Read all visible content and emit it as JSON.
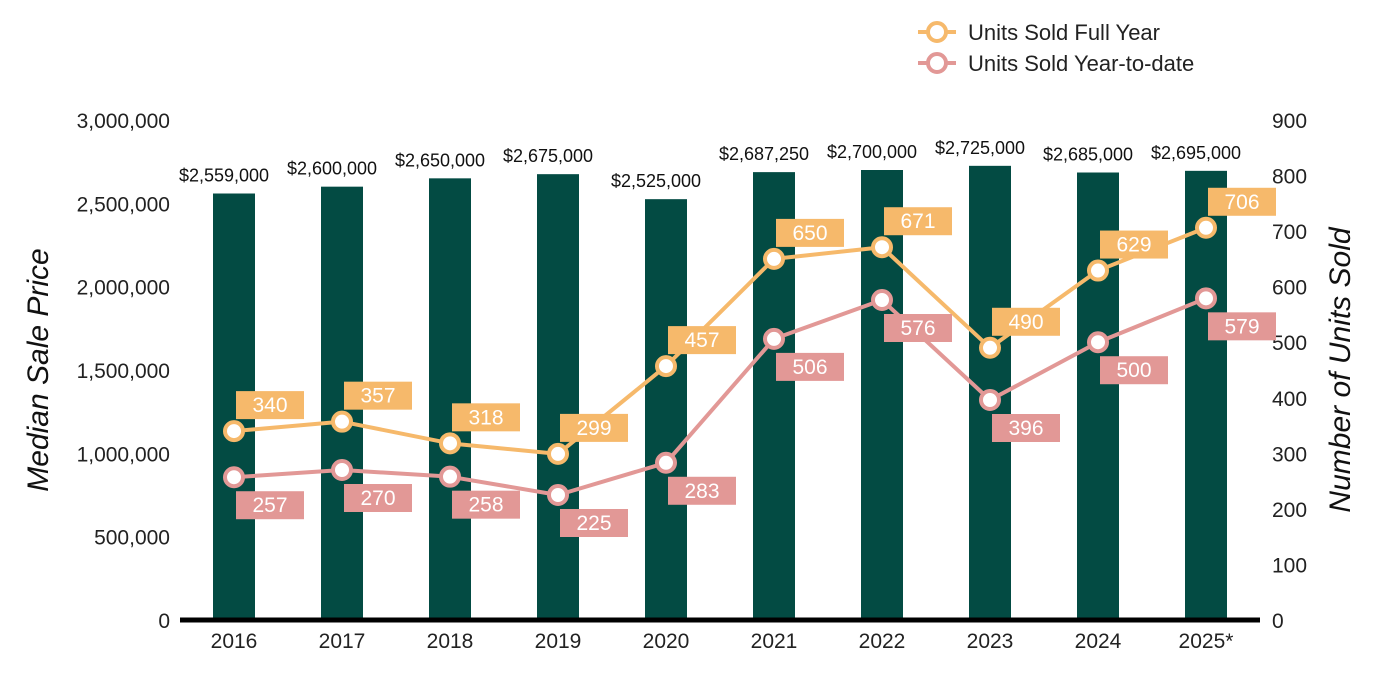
{
  "chart_data": {
    "type": "bar",
    "categories": [
      "2016",
      "2017",
      "2018",
      "2019",
      "2020",
      "2021",
      "2022",
      "2023",
      "2024",
      "2025*"
    ],
    "bar_series": {
      "axis": "left",
      "values": [
        2559000,
        2600000,
        2650000,
        2675000,
        2525000,
        2687250,
        2700000,
        2725000,
        2685000,
        2695000
      ],
      "labels": [
        "$2,559,000",
        "$2,600,000",
        "$2,650,000",
        "$2,675,000",
        "$2,525,000",
        "$2,687,250",
        "$2,700,000",
        "$2,725,000",
        "$2,685,000",
        "$2,695,000"
      ],
      "color": "#034b43"
    },
    "line_series": [
      {
        "name": "Units Sold Full Year",
        "type": "line",
        "axis": "right",
        "values": [
          340,
          357,
          318,
          299,
          457,
          650,
          671,
          490,
          629,
          706
        ],
        "color": "#f6b96b",
        "label_position": "above"
      },
      {
        "name": "Units Sold Year-to-date",
        "type": "line",
        "axis": "right",
        "values": [
          257,
          270,
          258,
          225,
          283,
          506,
          576,
          396,
          500,
          579
        ],
        "color": "#e29896",
        "label_position": "below"
      }
    ],
    "y_left": {
      "label": "Median Sale Price",
      "range": [
        0,
        3000000
      ],
      "ticks": [
        0,
        500000,
        1000000,
        1500000,
        2000000,
        2500000,
        3000000
      ],
      "tick_labels": [
        "0",
        "500,000",
        "1,000,000",
        "1,500,000",
        "2,000,000",
        "2,500,000",
        "3,000,000"
      ]
    },
    "y_right": {
      "label": "Number of Units Sold",
      "range": [
        0,
        900
      ],
      "ticks": [
        0,
        100,
        200,
        300,
        400,
        500,
        600,
        700,
        800,
        900
      ],
      "tick_labels": [
        "0",
        "100",
        "200",
        "300",
        "400",
        "500",
        "600",
        "700",
        "800",
        "900"
      ]
    },
    "grid": false,
    "legend": {
      "position": "top-right",
      "entries": [
        "Units Sold Full Year",
        "Units Sold Year-to-date"
      ]
    }
  }
}
